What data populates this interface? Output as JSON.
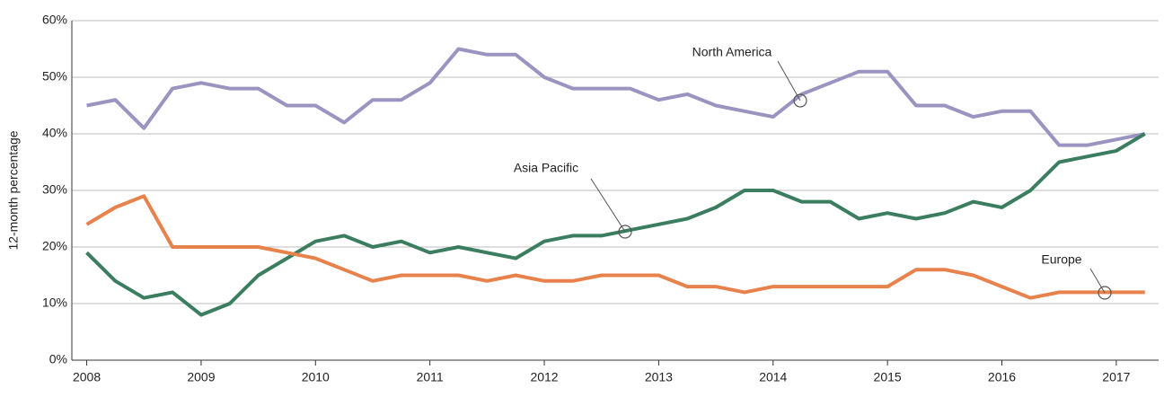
{
  "chart_data": {
    "type": "line",
    "y_label": "12-month percentage",
    "x": [
      2008,
      2008.25,
      2008.5,
      2008.75,
      2009,
      2009.25,
      2009.5,
      2009.75,
      2010,
      2010.25,
      2010.5,
      2010.75,
      2011,
      2011.25,
      2011.5,
      2011.75,
      2012,
      2012.25,
      2012.5,
      2012.75,
      2013,
      2013.25,
      2013.5,
      2013.75,
      2014,
      2014.25,
      2014.5,
      2014.75,
      2015,
      2015.25,
      2015.5,
      2015.75,
      2016,
      2016.25,
      2016.5,
      2016.75,
      2017,
      2017.25
    ],
    "series": [
      {
        "name": "North America",
        "color": "#9b93c0",
        "values": [
          45,
          46,
          41,
          48,
          49,
          48,
          48,
          45,
          45,
          42,
          46,
          46,
          49,
          55,
          54,
          54,
          50,
          48,
          48,
          48,
          46,
          47,
          45,
          44,
          43,
          47,
          49,
          51,
          51,
          45,
          45,
          43,
          44,
          44,
          38,
          38,
          39,
          40
        ]
      },
      {
        "name": "Asia Pacific",
        "color": "#3b7d5f",
        "values": [
          19,
          14,
          11,
          12,
          8,
          10,
          15,
          18,
          21,
          22,
          20,
          21,
          19,
          20,
          19,
          18,
          21,
          22,
          22,
          23,
          24,
          25,
          27,
          30,
          30,
          28,
          28,
          25,
          26,
          25,
          26,
          28,
          27,
          30,
          35,
          36,
          37,
          40
        ]
      },
      {
        "name": "Europe",
        "color": "#e8824c",
        "values": [
          24,
          27,
          29,
          20,
          20,
          20,
          20,
          19,
          18,
          16,
          14,
          15,
          15,
          15,
          14,
          15,
          14,
          14,
          15,
          15,
          15,
          13,
          13,
          12,
          13,
          13,
          13,
          13,
          13,
          16,
          16,
          15,
          13,
          11,
          12,
          12,
          12,
          12
        ]
      }
    ],
    "xlim": [
      2007.87,
      2017.37
    ],
    "xticks": [
      2008,
      2009,
      2010,
      2011,
      2012,
      2013,
      2014,
      2015,
      2016,
      2017
    ],
    "ylim": [
      0,
      60
    ],
    "yticks": [
      {
        "value": 0,
        "label": "0%"
      },
      {
        "value": 10,
        "label": "10%"
      },
      {
        "value": 20,
        "label": "20%"
      },
      {
        "value": 30,
        "label": "30%"
      },
      {
        "value": 40,
        "label": "40%"
      },
      {
        "value": 50,
        "label": "50%"
      },
      {
        "value": 60,
        "label": "60%"
      }
    ],
    "grid": true
  }
}
